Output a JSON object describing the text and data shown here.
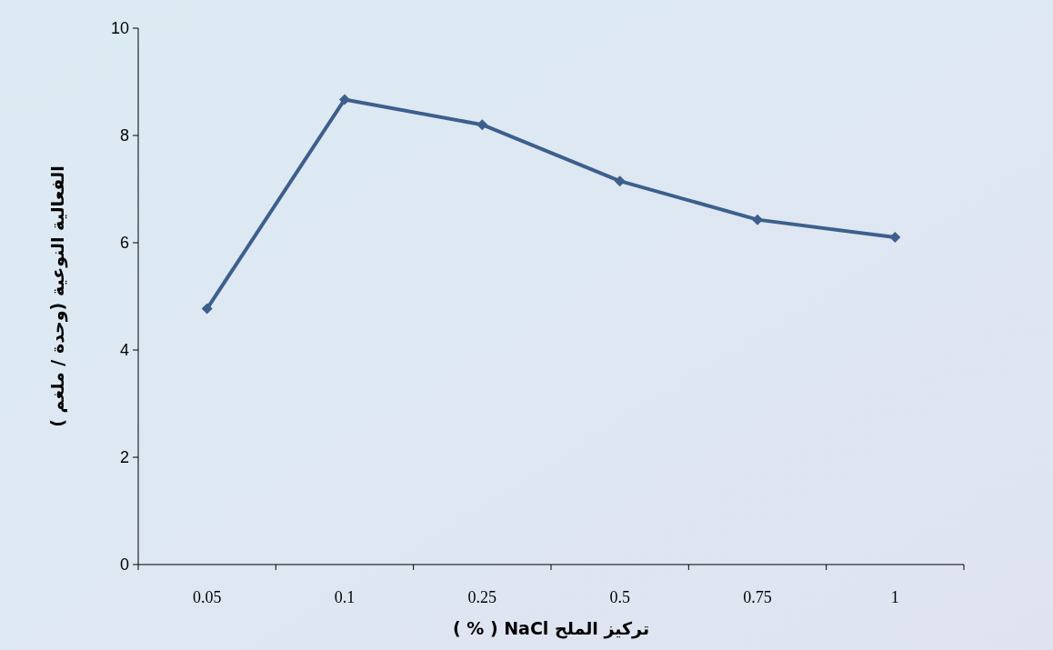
{
  "chart_data": {
    "type": "line",
    "xlabel": "تركيز الملح  NaCl ( % )",
    "ylabel": "الفعالية النوعية (وحدة / ملغم )",
    "categories": [
      "0.05",
      "0.1",
      "0.25",
      "0.5",
      "0.75",
      "1"
    ],
    "series": [
      {
        "color": "#3d5f8c",
        "values": [
          4.77,
          8.67,
          8.2,
          7.15,
          6.43,
          6.1
        ]
      }
    ],
    "ylim": [
      0,
      10
    ],
    "yticks": [
      0,
      2,
      4,
      6,
      8,
      10
    ],
    "grid": false,
    "marker": "diamond",
    "line_style": "solid"
  }
}
